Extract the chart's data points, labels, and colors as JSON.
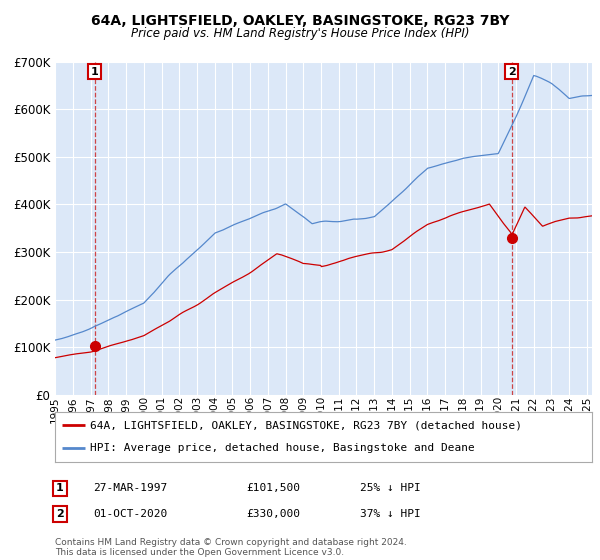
{
  "title1": "64A, LIGHTSFIELD, OAKLEY, BASINGSTOKE, RG23 7BY",
  "title2": "Price paid vs. HM Land Registry's House Price Index (HPI)",
  "legend_line1": "64A, LIGHTSFIELD, OAKLEY, BASINGSTOKE, RG23 7BY (detached house)",
  "legend_line2": "HPI: Average price, detached house, Basingstoke and Deane",
  "annotation1_label": "1",
  "annotation1_year": 1997.23,
  "annotation1_value": 101500,
  "annotation2_label": "2",
  "annotation2_year": 2020.75,
  "annotation2_value": 330000,
  "footer": "Contains HM Land Registry data © Crown copyright and database right 2024.\nThis data is licensed under the Open Government Licence v3.0.",
  "ylim": [
    0,
    700000
  ],
  "xlim_start": 1995.0,
  "xlim_end": 2025.3,
  "background_color": "#dce8f8",
  "plot_bg_color": "#dce8f8",
  "red_line_color": "#cc0000",
  "blue_line_color": "#5588cc",
  "grid_color": "#ffffff",
  "dashed_line_color": "#cc3333",
  "table_row1_num": "1",
  "table_row1_date": "27-MAR-1997",
  "table_row1_price": "£101,500",
  "table_row1_pct": "25% ↓ HPI",
  "table_row2_num": "2",
  "table_row2_date": "01-OCT-2020",
  "table_row2_price": "£330,000",
  "table_row2_pct": "37% ↓ HPI"
}
